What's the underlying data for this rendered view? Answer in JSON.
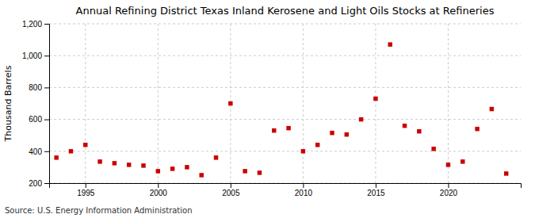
{
  "chart_data": {
    "type": "scatter",
    "title": "Annual Refining District Texas Inland Kerosene and Light Oils Stocks at Refineries",
    "ylabel": "Thousand Barrels",
    "annotations": [
      "Source: U.S. Energy Information Administration"
    ],
    "x": [
      1993,
      1994,
      1995,
      1996,
      1997,
      1998,
      1999,
      2000,
      2001,
      2002,
      2003,
      2004,
      2005,
      2006,
      2007,
      2008,
      2009,
      2010,
      2011,
      2012,
      2013,
      2014,
      2015,
      2016,
      2017,
      2018,
      2019,
      2020,
      2021,
      2022,
      2023,
      2024
    ],
    "values": [
      360,
      400,
      440,
      335,
      325,
      315,
      310,
      275,
      290,
      300,
      250,
      360,
      700,
      275,
      265,
      530,
      545,
      400,
      440,
      515,
      505,
      600,
      730,
      1070,
      560,
      525,
      415,
      315,
      335,
      540,
      665,
      260
    ],
    "color": "#cc0000",
    "marker": "square",
    "xlim": [
      1992.5,
      2025
    ],
    "xticks": [
      1995,
      2000,
      2005,
      2010,
      2015,
      2020
    ],
    "ylim": [
      200,
      1200
    ],
    "yticks": [
      200,
      400,
      600,
      800,
      {
        "value": 1000,
        "label": "1,000"
      },
      {
        "value": 1200,
        "label": "1,200"
      }
    ],
    "grid": true
  }
}
